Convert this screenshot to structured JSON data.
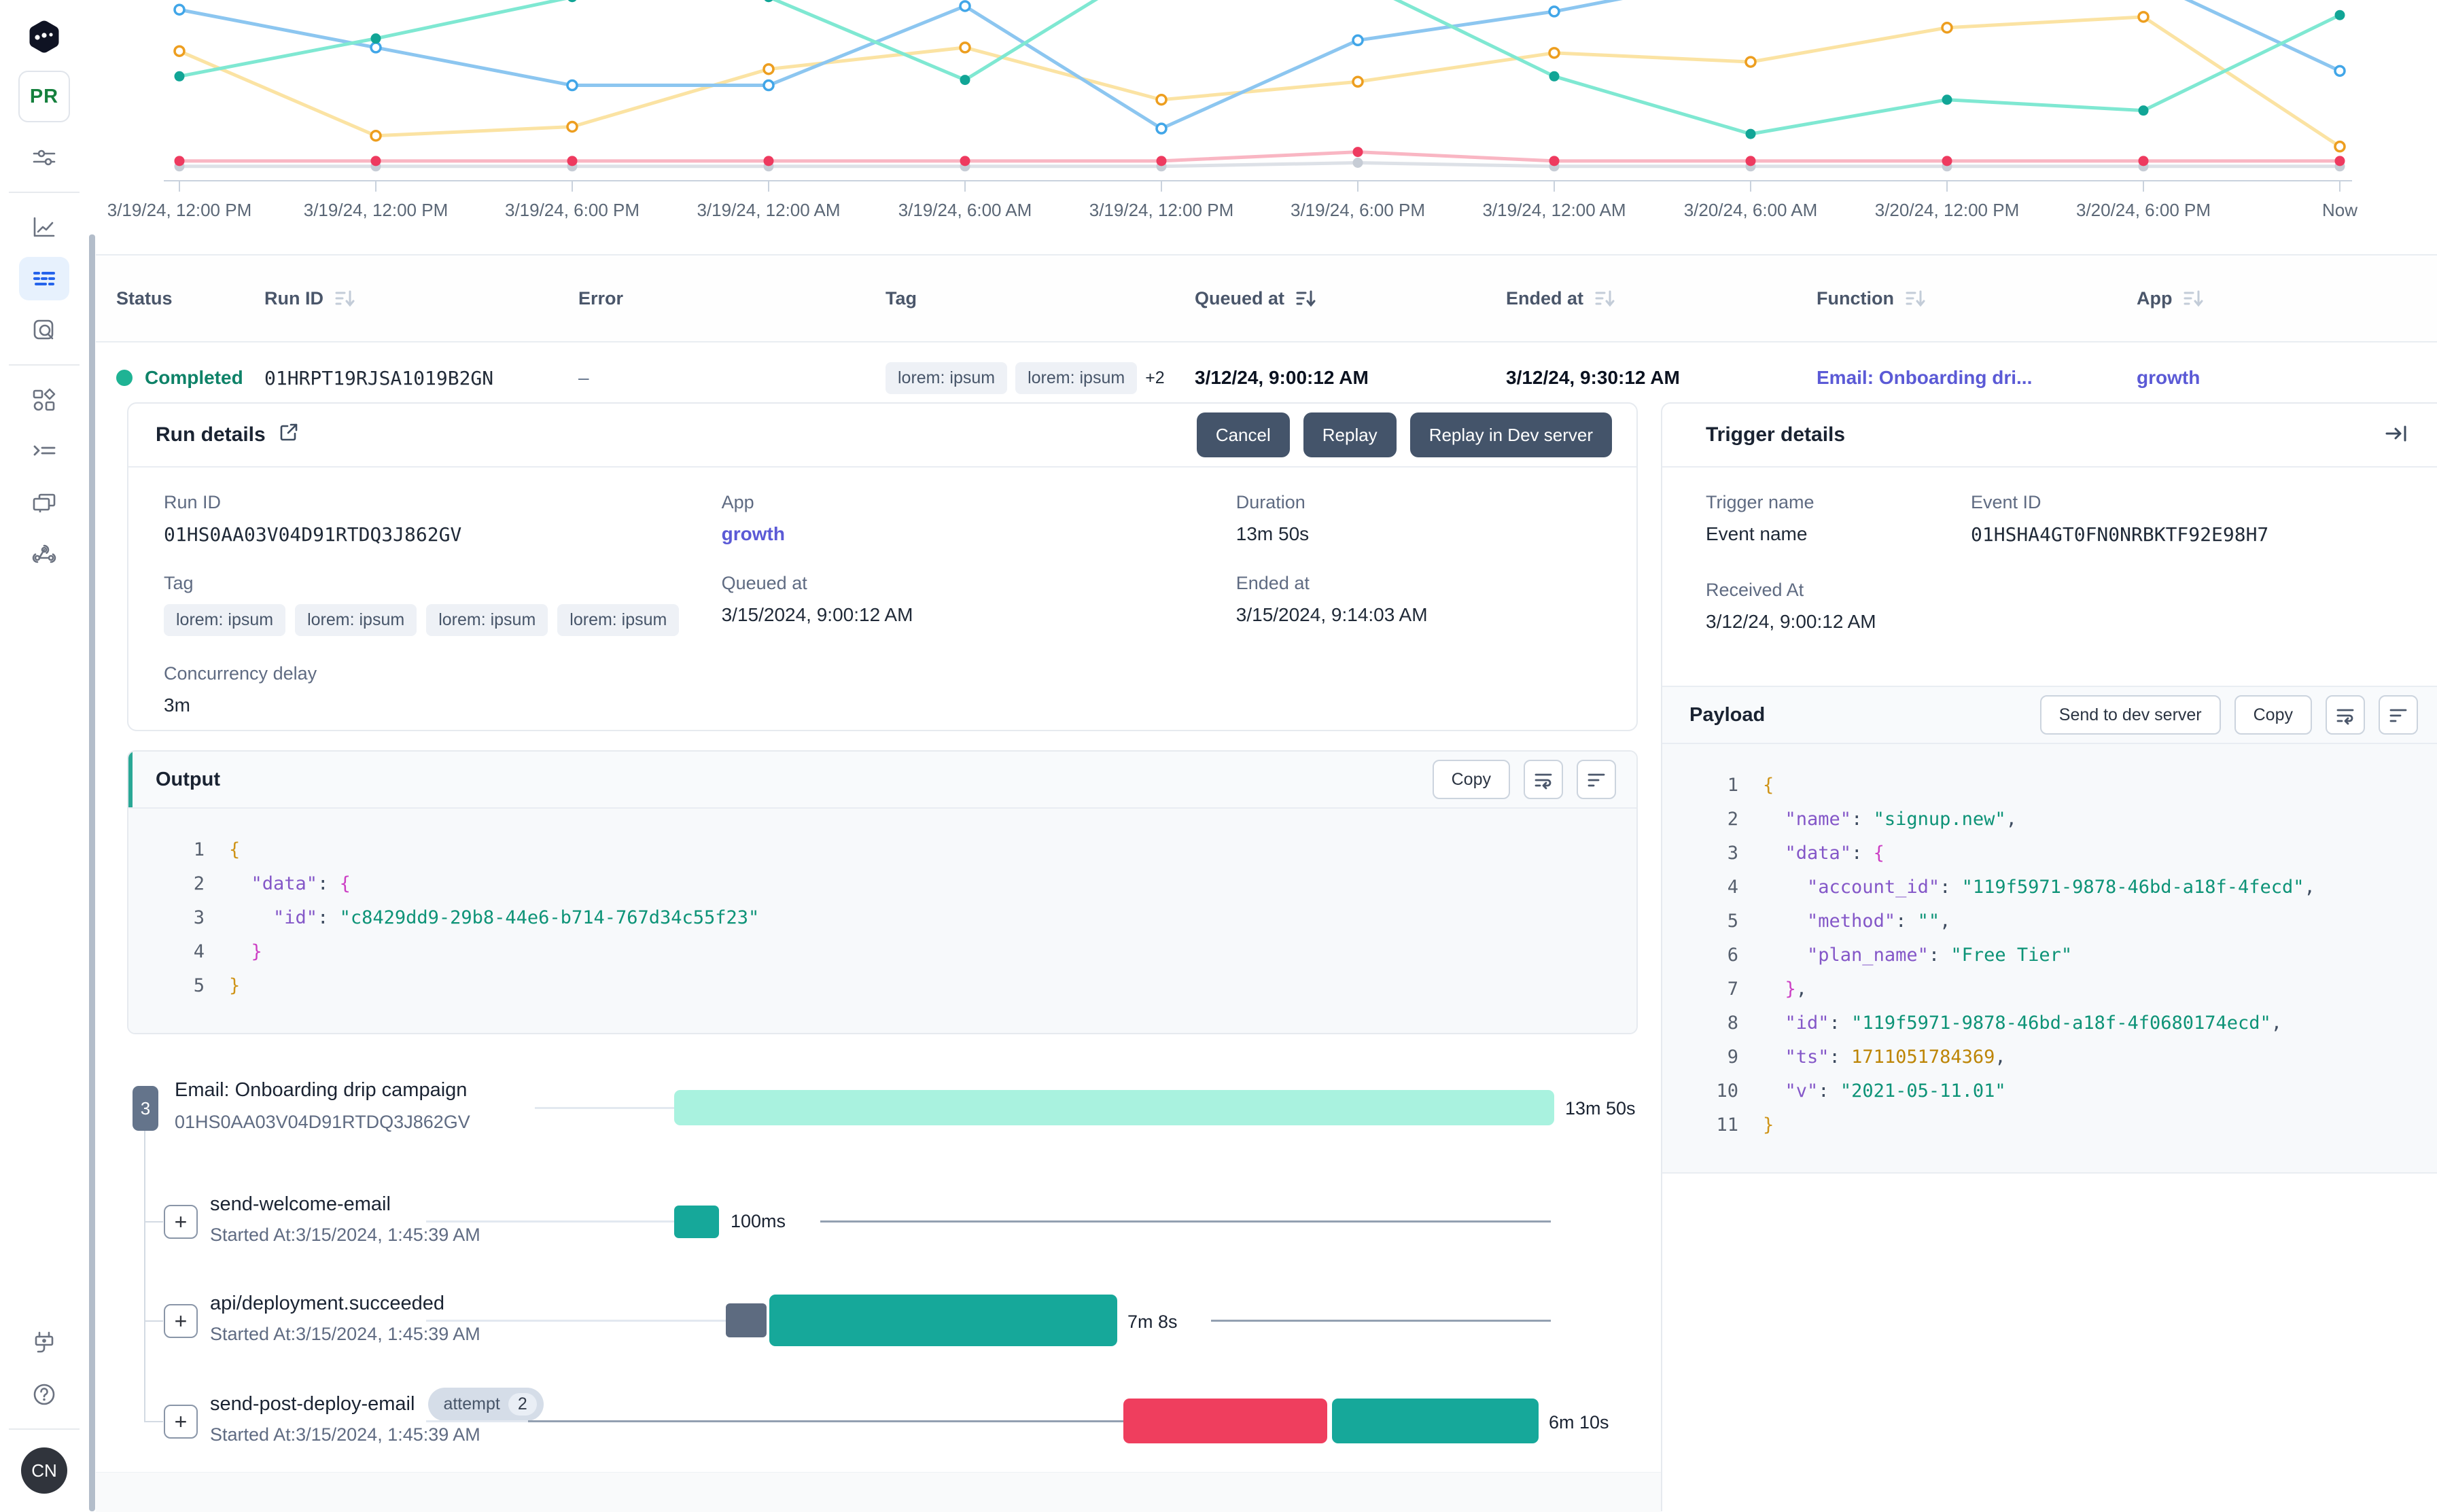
{
  "colors": {
    "accent_teal": "#2aa896",
    "status_teal": "#1fb394",
    "link_indigo": "#5b5ad6",
    "btn_slate": "#44546a",
    "bar_mint": "#a9f2df",
    "bar_teal": "#16a89a",
    "bar_red": "#ef3e5e",
    "badge_slate": "#64748b",
    "active_nav_bg": "#e7f1fd",
    "active_nav_blue": "#2563eb"
  },
  "sidebar": {
    "workspace_badge": "PR",
    "avatar_initials": "CN",
    "icons": [
      "inngest-logo",
      "workspace-pr-badge",
      "filter-sliders-icon",
      "metrics-icon",
      "runs-icon",
      "search-icon",
      "apps-icon",
      "functions-icon",
      "windows-icon",
      "webhook-icon",
      "plug-icon",
      "help-icon"
    ]
  },
  "chart_data": {
    "type": "line",
    "title": "",
    "x_labels": [
      "3/19/24, 12:00 PM",
      "3/19/24, 12:00 PM",
      "3/19/24, 6:00 PM",
      "3/19/24, 12:00 AM",
      "3/19/24, 6:00 AM",
      "3/19/24, 12:00 PM",
      "3/19/24, 6:00 PM",
      "3/19/24, 12:00 AM",
      "3/20/24, 6:00 AM",
      "3/20/24, 12:00 PM",
      "3/20/24, 6:00 PM",
      "Now"
    ],
    "ylim": [
      0,
      100
    ],
    "grid": false,
    "legend": "none (cropped above viewport)",
    "series": [
      {
        "name": "sky",
        "line": "#8cc6f0",
        "dot": "#41a6e8",
        "dot_style": "hollow",
        "values": [
          95,
          74,
          53,
          53,
          97,
          29,
          78,
          94,
          115,
          125,
          112,
          61
        ]
      },
      {
        "name": "teal",
        "line": "#7fe8d2",
        "dot": "#11a596",
        "dot_style": "solid",
        "values": [
          58,
          79,
          102,
          102,
          56,
          123,
          111,
          58,
          26,
          45,
          39,
          92
        ]
      },
      {
        "name": "amber",
        "line": "#fbe3a3",
        "dot": "#ed9e1f",
        "dot_style": "hollow",
        "values": [
          72,
          25,
          30,
          62,
          74,
          45,
          55,
          71,
          66,
          85,
          91,
          19
        ]
      },
      {
        "name": "red",
        "line": "#f9b6c3",
        "dot": "#ee3a5f",
        "dot_style": "solid",
        "values": [
          11,
          11,
          11,
          11,
          11,
          11,
          16,
          11,
          11,
          11,
          11,
          11
        ]
      },
      {
        "name": "gray",
        "line": "#dde1e7",
        "dot": "#c6ccd5",
        "dot_style": "solid",
        "values": [
          8,
          8,
          8,
          8,
          8,
          8,
          10,
          8,
          8,
          8,
          8,
          8
        ]
      }
    ]
  },
  "table": {
    "columns": [
      {
        "label": "Status"
      },
      {
        "label": "Run ID"
      },
      {
        "label": "Error"
      },
      {
        "label": "Tag"
      },
      {
        "label": "Queued at"
      },
      {
        "label": "Ended at"
      },
      {
        "label": "Function"
      },
      {
        "label": "App"
      }
    ],
    "row": {
      "status": "Completed",
      "run_id": "01HRPT19RJSA1019B2GN",
      "error": "–",
      "tags": [
        "lorem: ipsum",
        "lorem: ipsum"
      ],
      "tags_more": "+2",
      "queued_at": "3/12/24, 9:00:12 AM",
      "ended_at": "3/12/24, 9:30:12 AM",
      "function": "Email: Onboarding dri...",
      "app": "growth"
    }
  },
  "run_details": {
    "title": "Run details",
    "buttons": {
      "cancel": "Cancel",
      "replay": "Replay",
      "replay_dev": "Replay in Dev server"
    },
    "fields": {
      "run_id_label": "Run ID",
      "run_id": "01HS0AA03V04D91RTDQ3J862GV",
      "app_label": "App",
      "app": "growth",
      "duration_label": "Duration",
      "duration": "13m 50s",
      "tag_label": "Tag",
      "tags": [
        "lorem: ipsum",
        "lorem: ipsum",
        "lorem: ipsum",
        "lorem: ipsum"
      ],
      "queued_label": "Queued at",
      "queued": "3/15/2024, 9:00:12 AM",
      "ended_label": "Ended at",
      "ended": "3/15/2024, 9:14:03 AM",
      "concurrency_label": "Concurrency delay",
      "concurrency": "3m"
    }
  },
  "output": {
    "title": "Output",
    "copy_label": "Copy",
    "code_lines": [
      {
        "n": "1",
        "t": [
          {
            "c": "b1",
            "v": "{"
          }
        ]
      },
      {
        "n": "2",
        "t": [
          {
            "c": "pl",
            "v": "  "
          },
          {
            "c": "k",
            "v": "\"data\""
          },
          {
            "c": "pl",
            "v": ": "
          },
          {
            "c": "b2",
            "v": "{"
          }
        ]
      },
      {
        "n": "3",
        "t": [
          {
            "c": "pl",
            "v": "    "
          },
          {
            "c": "k",
            "v": "\"id\""
          },
          {
            "c": "pl",
            "v": ": "
          },
          {
            "c": "s",
            "v": "\"c8429dd9-29b8-44e6-b714-767d34c55f23\""
          }
        ]
      },
      {
        "n": "4",
        "t": [
          {
            "c": "pl",
            "v": "  "
          },
          {
            "c": "b2",
            "v": "}"
          }
        ]
      },
      {
        "n": "5",
        "t": [
          {
            "c": "b1",
            "v": "}"
          }
        ]
      }
    ]
  },
  "trigger": {
    "title": "Trigger details",
    "fields": {
      "trigger_name_label": "Trigger name",
      "trigger_name": "Event name",
      "event_id_label": "Event ID",
      "event_id": "01HSHA4GT0FN0NRBKTF92E98H7",
      "received_label": "Received At",
      "received": "3/12/24, 9:00:12 AM"
    },
    "payload": {
      "title": "Payload",
      "send_label": "Send to dev server",
      "copy_label": "Copy",
      "code_lines": [
        {
          "n": "1",
          "t": [
            {
              "c": "b1",
              "v": "{"
            }
          ]
        },
        {
          "n": "2",
          "t": [
            {
              "c": "pl",
              "v": "  "
            },
            {
              "c": "k",
              "v": "\"name\""
            },
            {
              "c": "pl",
              "v": ": "
            },
            {
              "c": "s",
              "v": "\"signup.new\""
            },
            {
              "c": "pl",
              "v": ","
            }
          ]
        },
        {
          "n": "3",
          "t": [
            {
              "c": "pl",
              "v": "  "
            },
            {
              "c": "k",
              "v": "\"data\""
            },
            {
              "c": "pl",
              "v": ": "
            },
            {
              "c": "b2",
              "v": "{"
            }
          ]
        },
        {
          "n": "4",
          "t": [
            {
              "c": "pl",
              "v": "    "
            },
            {
              "c": "k",
              "v": "\"account_id\""
            },
            {
              "c": "pl",
              "v": ": "
            },
            {
              "c": "s",
              "v": "\"119f5971-9878-46bd-a18f-4fecd\""
            },
            {
              "c": "pl",
              "v": ","
            }
          ]
        },
        {
          "n": "5",
          "t": [
            {
              "c": "pl",
              "v": "    "
            },
            {
              "c": "k",
              "v": "\"method\""
            },
            {
              "c": "pl",
              "v": ": "
            },
            {
              "c": "s",
              "v": "\"\""
            },
            {
              "c": "pl",
              "v": ","
            }
          ]
        },
        {
          "n": "6",
          "t": [
            {
              "c": "pl",
              "v": "    "
            },
            {
              "c": "k",
              "v": "\"plan_name\""
            },
            {
              "c": "pl",
              "v": ": "
            },
            {
              "c": "s",
              "v": "\"Free Tier\""
            }
          ]
        },
        {
          "n": "7",
          "t": [
            {
              "c": "pl",
              "v": "  "
            },
            {
              "c": "b2",
              "v": "}"
            },
            {
              "c": "pl",
              "v": ","
            }
          ]
        },
        {
          "n": "8",
          "t": [
            {
              "c": "pl",
              "v": "  "
            },
            {
              "c": "k",
              "v": "\"id\""
            },
            {
              "c": "pl",
              "v": ": "
            },
            {
              "c": "s",
              "v": "\"119f5971-9878-46bd-a18f-4f0680174ecd\""
            },
            {
              "c": "pl",
              "v": ","
            }
          ]
        },
        {
          "n": "9",
          "t": [
            {
              "c": "pl",
              "v": "  "
            },
            {
              "c": "k",
              "v": "\"ts\""
            },
            {
              "c": "pl",
              "v": ": "
            },
            {
              "c": "n",
              "v": "1711051784369"
            },
            {
              "c": "pl",
              "v": ","
            }
          ]
        },
        {
          "n": "10",
          "t": [
            {
              "c": "pl",
              "v": "  "
            },
            {
              "c": "k",
              "v": "\"v\""
            },
            {
              "c": "pl",
              "v": ": "
            },
            {
              "c": "s",
              "v": "\"2021-05-11.01\""
            }
          ]
        },
        {
          "n": "11",
          "t": [
            {
              "c": "b1",
              "v": "}"
            }
          ]
        }
      ]
    }
  },
  "timeline": {
    "expand_icon": "+",
    "root": {
      "badge": "3",
      "name": "Email: Onboarding drip campaign",
      "id": "01HS0AA03V04D91RTDQ3J862GV",
      "duration": "13m 50s"
    },
    "steps": [
      {
        "name": "send-welcome-email",
        "started": "Started At:3/15/2024, 1:45:39 AM",
        "duration": "100ms"
      },
      {
        "name": "api/deployment.succeeded",
        "started": "Started At:3/15/2024, 1:45:39 AM",
        "duration": "7m 8s"
      },
      {
        "name": "send-post-deploy-email",
        "attempt_label": "attempt",
        "attempt_count": "2",
        "started": "Started At:3/15/2024, 1:45:39 AM",
        "duration": "6m 10s"
      }
    ]
  }
}
